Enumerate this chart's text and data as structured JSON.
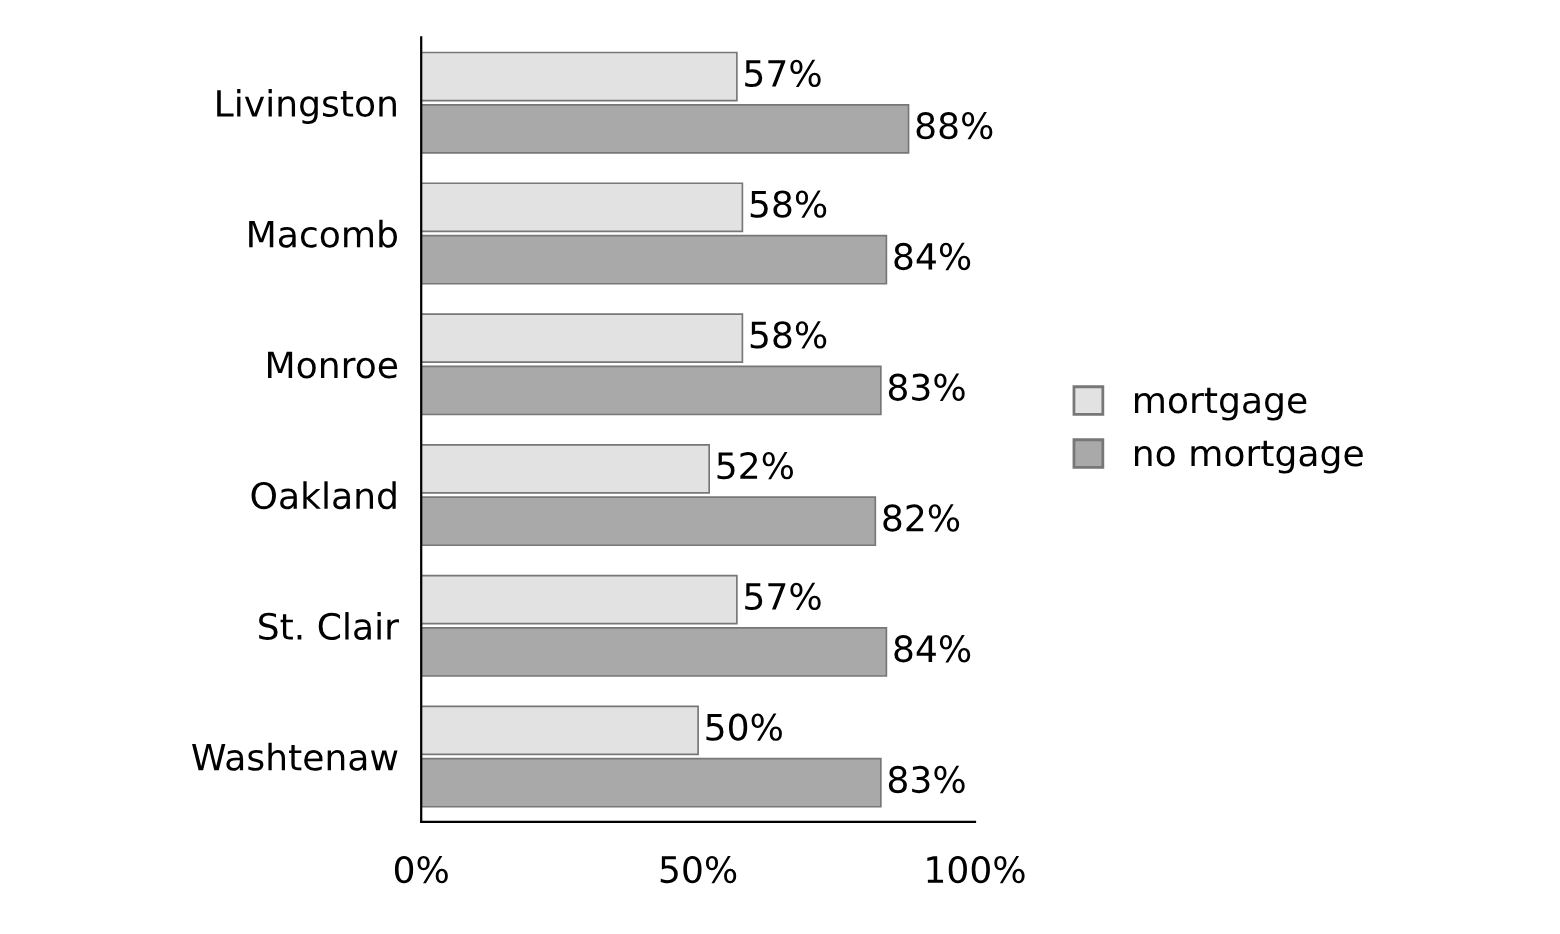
{
  "chart_data": {
    "type": "bar",
    "orientation": "horizontal",
    "categories": [
      "Livingston",
      "Macomb",
      "Monroe",
      "Oakland",
      "St. Clair",
      "Washtenaw"
    ],
    "series": [
      {
        "name": "mortgage",
        "color": "#e2e2e2",
        "values": [
          57,
          58,
          58,
          52,
          57,
          50
        ],
        "value_labels": [
          "57%",
          "58%",
          "58%",
          "52%",
          "57%",
          "50%"
        ]
      },
      {
        "name": "no mortgage",
        "color": "#a9a9a9",
        "values": [
          88,
          84,
          83,
          82,
          84,
          83
        ],
        "value_labels": [
          "88%",
          "84%",
          "83%",
          "82%",
          "84%",
          "83%"
        ]
      }
    ],
    "xlim": [
      0,
      100
    ],
    "xticks": [
      {
        "value": 0,
        "label": "0%"
      },
      {
        "value": 50,
        "label": "50%"
      },
      {
        "value": 100,
        "label": "100%"
      }
    ],
    "grid": false,
    "legend": "right"
  }
}
